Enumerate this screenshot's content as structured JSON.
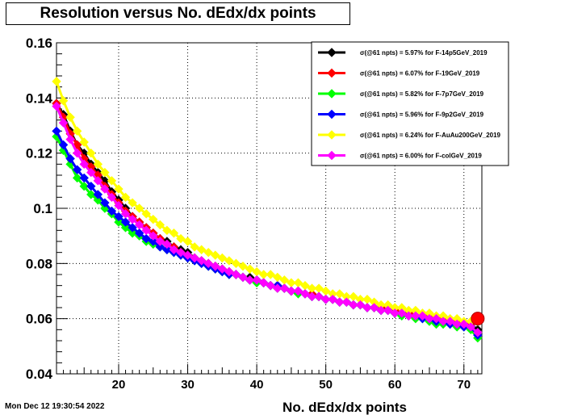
{
  "title": "Resolution versus No. dEdx/dx points",
  "timestamp": "Mon Dec 12 19:30:54 2022",
  "chart_data": {
    "type": "line",
    "xlabel": "No. dEdx/dx points",
    "ylabel": "",
    "xlim": [
      11,
      72.6
    ],
    "ylim": [
      0.04,
      0.16
    ],
    "xticks": [
      20,
      30,
      40,
      50,
      60,
      70
    ],
    "yticks": [
      0.04,
      0.06,
      0.08,
      0.1,
      0.12,
      0.14,
      0.16
    ],
    "ytick_labels": [
      "0.04",
      "0.06",
      "0.08",
      "0.1",
      "0.12",
      "0.14",
      "0.16"
    ],
    "grid": true,
    "legend_position": "top-right",
    "x": [
      11,
      12,
      13,
      14,
      15,
      16,
      17,
      18,
      19,
      20,
      21,
      22,
      23,
      24,
      25,
      26,
      27,
      28,
      29,
      30,
      31,
      32,
      33,
      34,
      35,
      36,
      37,
      38,
      39,
      40,
      41,
      42,
      43,
      44,
      45,
      46,
      47,
      48,
      49,
      50,
      51,
      52,
      53,
      54,
      55,
      56,
      57,
      58,
      59,
      60,
      61,
      62,
      63,
      64,
      65,
      66,
      67,
      68,
      69,
      70,
      71,
      72
    ],
    "series": [
      {
        "name": "σ(@61 npts) =  5.97% for F-14p5GeV_2019",
        "color": "#000000",
        "values": [
          0.138,
          0.134,
          0.128,
          0.123,
          0.12,
          0.116,
          0.113,
          0.11,
          0.106,
          0.103,
          0.1,
          0.097,
          0.095,
          0.093,
          0.091,
          0.089,
          0.088,
          0.086,
          0.085,
          0.084,
          0.082,
          0.081,
          0.08,
          0.079,
          0.078,
          0.077,
          0.076,
          0.075,
          0.075,
          0.074,
          0.073,
          0.072,
          0.072,
          0.071,
          0.07,
          0.07,
          0.069,
          0.068,
          0.068,
          0.067,
          0.067,
          0.066,
          0.066,
          0.065,
          0.065,
          0.064,
          0.064,
          0.063,
          0.063,
          0.062,
          0.062,
          0.062,
          0.061,
          0.061,
          0.06,
          0.06,
          0.06,
          0.059,
          0.059,
          0.058,
          0.058,
          0.056
        ]
      },
      {
        "name": "σ(@61 npts) =  6.07% for F-19GeV_2019",
        "color": "#ff0000",
        "values": [
          0.138,
          0.133,
          0.127,
          0.123,
          0.118,
          0.115,
          0.112,
          0.108,
          0.105,
          0.102,
          0.099,
          0.097,
          0.095,
          0.093,
          0.091,
          0.089,
          0.087,
          0.086,
          0.084,
          0.083,
          0.082,
          0.081,
          0.08,
          0.079,
          0.078,
          0.077,
          0.076,
          0.075,
          0.074,
          0.074,
          0.073,
          0.072,
          0.072,
          0.071,
          0.07,
          0.07,
          0.069,
          0.069,
          0.068,
          0.067,
          0.067,
          0.066,
          0.066,
          0.065,
          0.065,
          0.064,
          0.064,
          0.064,
          0.063,
          0.063,
          0.062,
          0.062,
          0.061,
          0.061,
          0.061,
          0.06,
          0.06,
          0.059,
          0.059,
          0.058,
          0.058,
          0.06
        ]
      },
      {
        "name": "σ(@61 npts) =  5.82% for F-7p7GeV_2019",
        "color": "#00ff00",
        "values": [
          0.126,
          0.121,
          0.116,
          0.111,
          0.108,
          0.105,
          0.103,
          0.1,
          0.098,
          0.095,
          0.093,
          0.091,
          0.09,
          0.088,
          0.087,
          0.086,
          0.085,
          0.084,
          0.083,
          0.082,
          0.081,
          0.08,
          0.079,
          0.078,
          0.077,
          0.076,
          0.076,
          0.075,
          0.074,
          0.073,
          0.073,
          0.072,
          0.071,
          0.071,
          0.07,
          0.069,
          0.069,
          0.068,
          0.068,
          0.067,
          0.067,
          0.066,
          0.066,
          0.065,
          0.065,
          0.064,
          0.064,
          0.063,
          0.063,
          0.062,
          0.061,
          0.061,
          0.06,
          0.06,
          0.059,
          0.058,
          0.058,
          0.058,
          0.057,
          0.057,
          0.056,
          0.053
        ]
      },
      {
        "name": "σ(@61 npts) =  5.96% for F-9p2GeV_2019",
        "color": "#0000ff",
        "values": [
          0.128,
          0.123,
          0.118,
          0.114,
          0.111,
          0.108,
          0.105,
          0.102,
          0.099,
          0.097,
          0.095,
          0.093,
          0.091,
          0.089,
          0.088,
          0.086,
          0.085,
          0.084,
          0.083,
          0.082,
          0.081,
          0.08,
          0.079,
          0.078,
          0.077,
          0.076,
          0.076,
          0.075,
          0.074,
          0.074,
          0.073,
          0.072,
          0.072,
          0.071,
          0.07,
          0.07,
          0.069,
          0.068,
          0.068,
          0.067,
          0.067,
          0.066,
          0.066,
          0.065,
          0.065,
          0.064,
          0.064,
          0.063,
          0.063,
          0.062,
          0.062,
          0.061,
          0.061,
          0.06,
          0.06,
          0.059,
          0.059,
          0.058,
          0.058,
          0.057,
          0.057,
          0.054
        ]
      },
      {
        "name": "σ(@61 npts) =  6.24% for F-AuAu200GeV_2019",
        "color": "#ffff00",
        "values": [
          0.146,
          0.139,
          0.133,
          0.128,
          0.124,
          0.12,
          0.116,
          0.113,
          0.11,
          0.107,
          0.104,
          0.102,
          0.1,
          0.098,
          0.096,
          0.094,
          0.092,
          0.091,
          0.089,
          0.088,
          0.086,
          0.085,
          0.084,
          0.083,
          0.082,
          0.081,
          0.08,
          0.079,
          0.078,
          0.077,
          0.076,
          0.076,
          0.075,
          0.074,
          0.073,
          0.073,
          0.072,
          0.071,
          0.071,
          0.07,
          0.069,
          0.069,
          0.068,
          0.068,
          0.067,
          0.067,
          0.066,
          0.065,
          0.065,
          0.064,
          0.064,
          0.063,
          0.063,
          0.062,
          0.062,
          0.061,
          0.061,
          0.06,
          0.06,
          0.059,
          0.059,
          0.059
        ]
      },
      {
        "name": "σ(@61 npts) =  6.00% for F-colGeV_2019",
        "color": "#ff00ff",
        "values": [
          0.137,
          0.131,
          0.125,
          0.12,
          0.116,
          0.113,
          0.11,
          0.107,
          0.104,
          0.101,
          0.098,
          0.096,
          0.094,
          0.092,
          0.09,
          0.088,
          0.087,
          0.085,
          0.084,
          0.083,
          0.082,
          0.081,
          0.08,
          0.079,
          0.078,
          0.077,
          0.076,
          0.075,
          0.074,
          0.074,
          0.073,
          0.072,
          0.071,
          0.071,
          0.07,
          0.07,
          0.069,
          0.068,
          0.068,
          0.067,
          0.067,
          0.066,
          0.066,
          0.065,
          0.065,
          0.064,
          0.064,
          0.063,
          0.063,
          0.062,
          0.062,
          0.061,
          0.061,
          0.061,
          0.06,
          0.06,
          0.059,
          0.059,
          0.058,
          0.058,
          0.057,
          0.055
        ]
      }
    ]
  }
}
